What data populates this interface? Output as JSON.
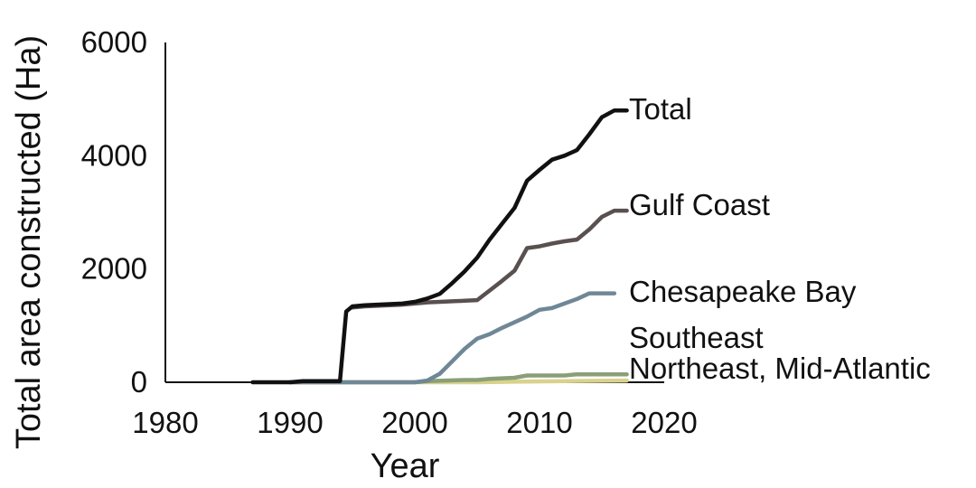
{
  "chart_data": {
    "type": "line",
    "xlabel": "Year",
    "ylabel": "Total area constructed (Ha)",
    "xlim": [
      1980,
      2020
    ],
    "ylim": [
      0,
      6000
    ],
    "xticks": [
      "1980",
      "1990",
      "2000",
      "2010",
      "2020"
    ],
    "yticks": [
      "0",
      "2000",
      "4000",
      "6000"
    ],
    "grid": false,
    "legend": "direct labels at right end of lines",
    "series": [
      {
        "name": "Total",
        "color": "#111111",
        "points": [
          [
            1987,
            0
          ],
          [
            1990,
            0
          ],
          [
            1991,
            20
          ],
          [
            1994,
            20
          ],
          [
            1994.5,
            1250
          ],
          [
            1995,
            1340
          ],
          [
            1996,
            1360
          ],
          [
            1997,
            1370
          ],
          [
            1998,
            1380
          ],
          [
            1999,
            1390
          ],
          [
            2000,
            1420
          ],
          [
            2001,
            1480
          ],
          [
            2002,
            1560
          ],
          [
            2003,
            1750
          ],
          [
            2004,
            1960
          ],
          [
            2005,
            2200
          ],
          [
            2006,
            2520
          ],
          [
            2007,
            2800
          ],
          [
            2008,
            3080
          ],
          [
            2009,
            3560
          ],
          [
            2010,
            3750
          ],
          [
            2011,
            3930
          ],
          [
            2012,
            4000
          ],
          [
            2013,
            4100
          ],
          [
            2014,
            4380
          ],
          [
            2015,
            4680
          ],
          [
            2016,
            4800
          ],
          [
            2017,
            4800
          ]
        ]
      },
      {
        "name": "Gulf Coast",
        "color": "#5a5050",
        "points": [
          [
            1995,
            1320
          ],
          [
            1996,
            1340
          ],
          [
            1997,
            1350
          ],
          [
            1998,
            1360
          ],
          [
            1999,
            1370
          ],
          [
            2000,
            1390
          ],
          [
            2001,
            1410
          ],
          [
            2002,
            1420
          ],
          [
            2003,
            1430
          ],
          [
            2004,
            1440
          ],
          [
            2005,
            1450
          ],
          [
            2006,
            1620
          ],
          [
            2007,
            1790
          ],
          [
            2008,
            1970
          ],
          [
            2009,
            2370
          ],
          [
            2010,
            2400
          ],
          [
            2011,
            2450
          ],
          [
            2012,
            2490
          ],
          [
            2013,
            2520
          ],
          [
            2014,
            2700
          ],
          [
            2015,
            2920
          ],
          [
            2016,
            3030
          ],
          [
            2017,
            3030
          ]
        ]
      },
      {
        "name": "Chesapeake Bay",
        "color": "#6f8796",
        "points": [
          [
            1990,
            0
          ],
          [
            2000,
            0
          ],
          [
            2001,
            30
          ],
          [
            2002,
            150
          ],
          [
            2003,
            370
          ],
          [
            2004,
            590
          ],
          [
            2005,
            770
          ],
          [
            2006,
            850
          ],
          [
            2007,
            960
          ],
          [
            2008,
            1060
          ],
          [
            2009,
            1160
          ],
          [
            2010,
            1280
          ],
          [
            2011,
            1310
          ],
          [
            2012,
            1390
          ],
          [
            2013,
            1470
          ],
          [
            2014,
            1570
          ],
          [
            2015,
            1570
          ],
          [
            2016,
            1570
          ]
        ]
      },
      {
        "name": "Southeast",
        "color": "#8a9f78",
        "points": [
          [
            1990,
            0
          ],
          [
            2000,
            0
          ],
          [
            2001,
            20
          ],
          [
            2004,
            40
          ],
          [
            2005,
            40
          ],
          [
            2006,
            60
          ],
          [
            2008,
            80
          ],
          [
            2009,
            120
          ],
          [
            2012,
            120
          ],
          [
            2013,
            140
          ],
          [
            2017,
            140
          ]
        ]
      },
      {
        "name": "Northeast, Mid-Atlantic",
        "color": "#d9d28c",
        "points": [
          [
            1990,
            0
          ],
          [
            2005,
            0
          ],
          [
            2008,
            10
          ],
          [
            2012,
            20
          ],
          [
            2017,
            30
          ]
        ]
      }
    ]
  }
}
